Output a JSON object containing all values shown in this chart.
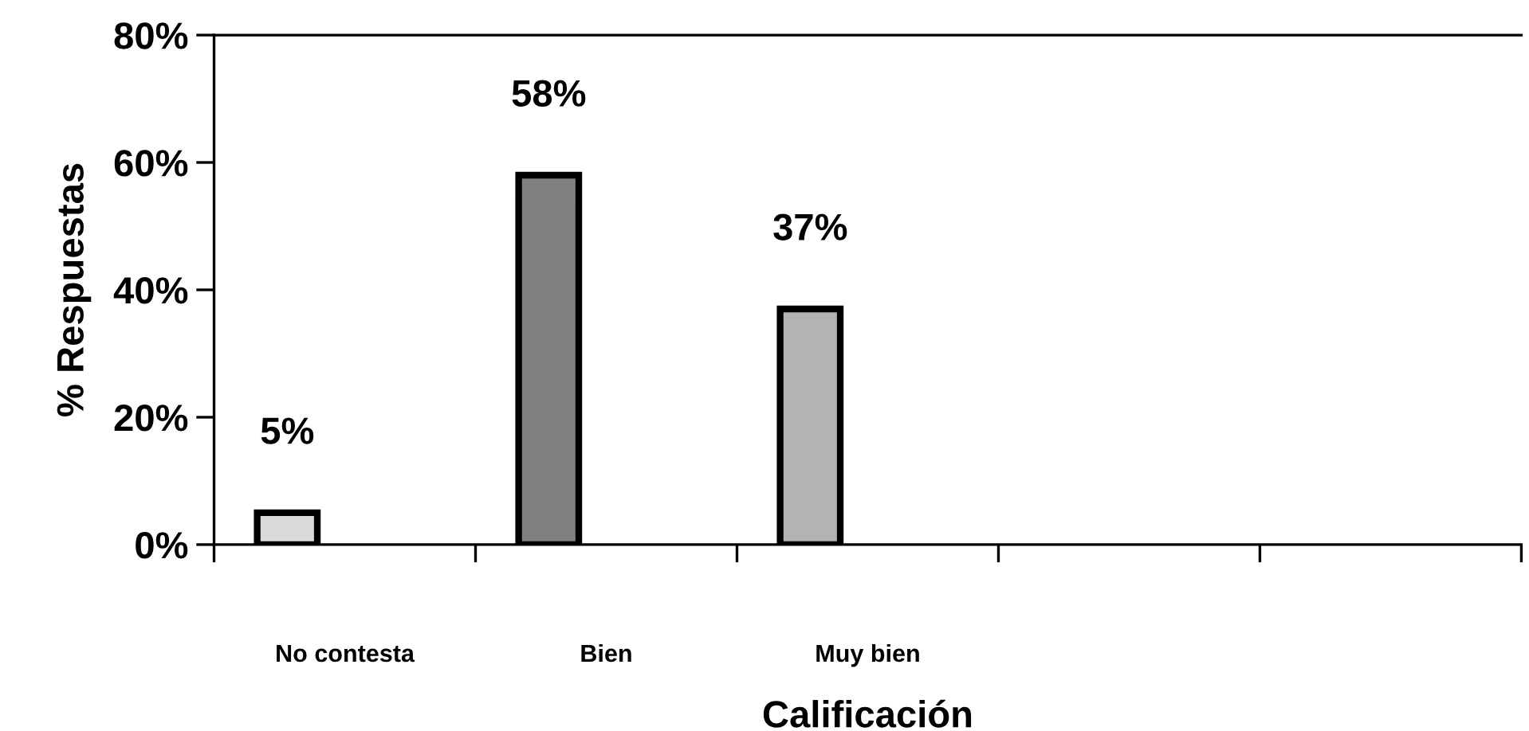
{
  "chart_data": {
    "type": "bar",
    "xlabel": "Calificación",
    "ylabel": "% Respuestas",
    "categories": [
      "No contesta",
      "Bien",
      "Muy bien",
      null,
      null
    ],
    "values": [
      5,
      58,
      37,
      null,
      null
    ],
    "colors": [
      "#d9d9d9",
      "#7f7f7f",
      "#b3b3b3",
      "#b3b3b3",
      "#b3b3b3"
    ],
    "value_labels": [
      "5%",
      "58%",
      "37%",
      null,
      null
    ],
    "ylim": [
      0,
      80
    ],
    "yticks": [
      {
        "value": 0,
        "label": "0%"
      },
      {
        "value": 20,
        "label": "20%"
      },
      {
        "value": 40,
        "label": "40%"
      },
      {
        "value": 60,
        "label": "60%"
      },
      {
        "value": 80,
        "label": "80%"
      }
    ],
    "grid": false,
    "legend": false
  }
}
